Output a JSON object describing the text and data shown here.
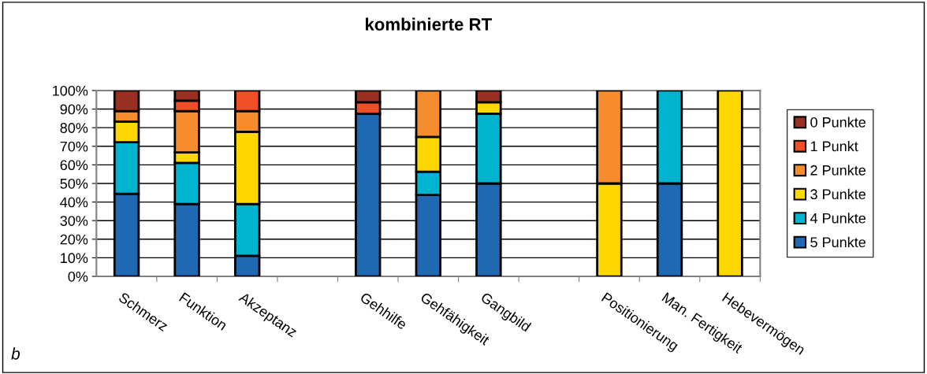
{
  "chart_data": {
    "type": "bar",
    "title": "kombinierte RT",
    "stacked": true,
    "categories": [
      "Schmerz",
      "Funktion",
      "Akzeptanz",
      null,
      "Gehhilfe",
      "Gehfähigkeit",
      "Gangbild",
      null,
      "Positionierung",
      "Man. Fertigkeit",
      "Hebevermögen"
    ],
    "series": [
      {
        "name": "5 Punkte",
        "color": "#1f68b2",
        "values": [
          44.4,
          38.9,
          11.1,
          null,
          87.5,
          43.8,
          50,
          null,
          0,
          50,
          0
        ]
      },
      {
        "name": "4 Punkte",
        "color": "#00b4d0",
        "values": [
          27.8,
          22.2,
          27.8,
          null,
          0,
          12.5,
          37.5,
          null,
          0,
          50,
          0
        ]
      },
      {
        "name": "3 Punkte",
        "color": "#ffd700",
        "values": [
          11.1,
          5.6,
          38.9,
          null,
          0,
          18.7,
          6.2,
          null,
          50,
          0,
          100
        ]
      },
      {
        "name": "2 Punkte",
        "color": "#f68c2d",
        "values": [
          5.6,
          22.2,
          11.1,
          null,
          0,
          25,
          0,
          null,
          50,
          0,
          0
        ]
      },
      {
        "name": "1 Punkt",
        "color": "#f04e26",
        "values": [
          0,
          5.6,
          11.1,
          null,
          6.2,
          0,
          0,
          null,
          0,
          0,
          0
        ]
      },
      {
        "name": "0 Punkte",
        "color": "#9b3022",
        "values": [
          11.1,
          5.6,
          0,
          null,
          6.3,
          0,
          6.3,
          null,
          0,
          0,
          0
        ]
      }
    ],
    "ylim": [
      0,
      100
    ],
    "yticks": [
      {
        "value": 0,
        "label": "0%"
      },
      {
        "value": 10,
        "label": "10%"
      },
      {
        "value": 20,
        "label": "20%"
      },
      {
        "value": 30,
        "label": "30%"
      },
      {
        "value": 40,
        "label": "40%"
      },
      {
        "value": 50,
        "label": "50%"
      },
      {
        "value": 60,
        "label": "60%"
      },
      {
        "value": 70,
        "label": "70%"
      },
      {
        "value": 80,
        "label": "80%"
      },
      {
        "value": 90,
        "label": "90%"
      },
      {
        "value": 100,
        "label": "100%"
      }
    ],
    "grid": "y",
    "legend": "right",
    "annotations": [
      "b"
    ]
  }
}
